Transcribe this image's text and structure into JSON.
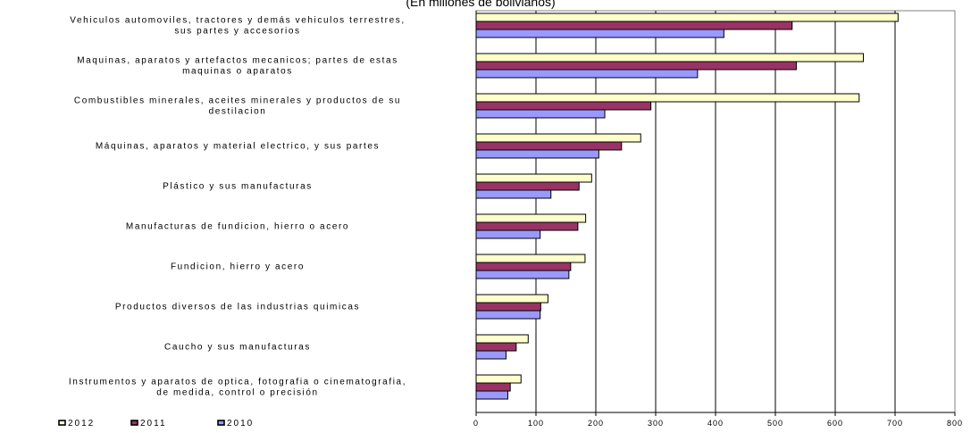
{
  "chart_data": {
    "type": "bar",
    "orientation": "horizontal",
    "subtitle": "(En millones de bolivianos)",
    "categories": [
      [
        "Vehiculos automoviles, tractores y demás vehiculos terrestres,",
        "sus partes y accesorios"
      ],
      [
        "Maquinas, aparatos y artefactos mecanicos; partes de estas",
        "maquinas o aparatos"
      ],
      [
        "Combustibles minerales, aceites minerales y productos de su",
        "destilacion"
      ],
      [
        "Máquinas, aparatos y material electrico, y sus partes"
      ],
      [
        "Plástico y sus manufacturas"
      ],
      [
        "Manufacturas de fundicion, hierro o acero"
      ],
      [
        "Fundicion, hierro y acero"
      ],
      [
        "Productos diversos de las industrias quimicas"
      ],
      [
        "Caucho y sus manufacturas"
      ],
      [
        "Instrumentos y aparatos de optica, fotografia o cinematografia,",
        "de medida, control o precisión"
      ]
    ],
    "series": [
      {
        "name": "2012",
        "color": "#FFFFCC",
        "values": [
          705,
          647,
          640,
          275,
          193,
          183,
          182,
          120,
          87,
          75
        ]
      },
      {
        "name": "2011",
        "color": "#993366",
        "values": [
          528,
          535,
          292,
          243,
          172,
          170,
          158,
          108,
          67,
          57
        ]
      },
      {
        "name": "2010",
        "color": "#9999FF",
        "values": [
          414,
          370,
          215,
          205,
          125,
          107,
          155,
          107,
          50,
          53
        ]
      }
    ],
    "xlim": [
      0,
      800
    ],
    "xticks": [
      0,
      100,
      200,
      300,
      400,
      500,
      600,
      700,
      800
    ],
    "grid": true,
    "legend_position": "bottom-left"
  }
}
